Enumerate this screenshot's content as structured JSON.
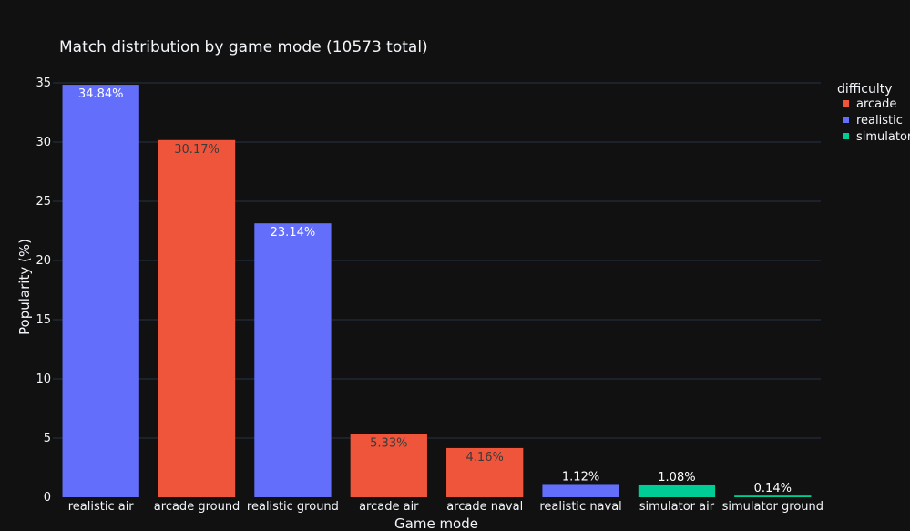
{
  "chart_data": {
    "type": "bar",
    "title": "Match distribution by game mode (10573 total)",
    "xlabel": "Game mode",
    "ylabel": "Popularity (%)",
    "ylim": [
      0,
      36
    ],
    "yticks": [
      0,
      5,
      10,
      15,
      20,
      25,
      30,
      35
    ],
    "grid": true,
    "legend": {
      "title": "difficulty",
      "placement": "right",
      "entries": [
        {
          "name": "arcade",
          "color": "#ef553b"
        },
        {
          "name": "realistic",
          "color": "#636efa"
        },
        {
          "name": "simulator",
          "color": "#00cc96"
        }
      ]
    },
    "bars": [
      {
        "category": "realistic air",
        "value": 34.84,
        "label": "34.84%",
        "difficulty": "realistic"
      },
      {
        "category": "arcade ground",
        "value": 30.17,
        "label": "30.17%",
        "difficulty": "arcade"
      },
      {
        "category": "realistic ground",
        "value": 23.14,
        "label": "23.14%",
        "difficulty": "realistic"
      },
      {
        "category": "arcade air",
        "value": 5.33,
        "label": "5.33%",
        "difficulty": "arcade"
      },
      {
        "category": "arcade naval",
        "value": 4.16,
        "label": "4.16%",
        "difficulty": "arcade"
      },
      {
        "category": "realistic naval",
        "value": 1.12,
        "label": "1.12%",
        "difficulty": "realistic"
      },
      {
        "category": "simulator air",
        "value": 1.08,
        "label": "1.08%",
        "difficulty": "simulator"
      },
      {
        "category": "simulator ground",
        "value": 0.14,
        "label": "0.14%",
        "difficulty": "simulator"
      }
    ]
  }
}
